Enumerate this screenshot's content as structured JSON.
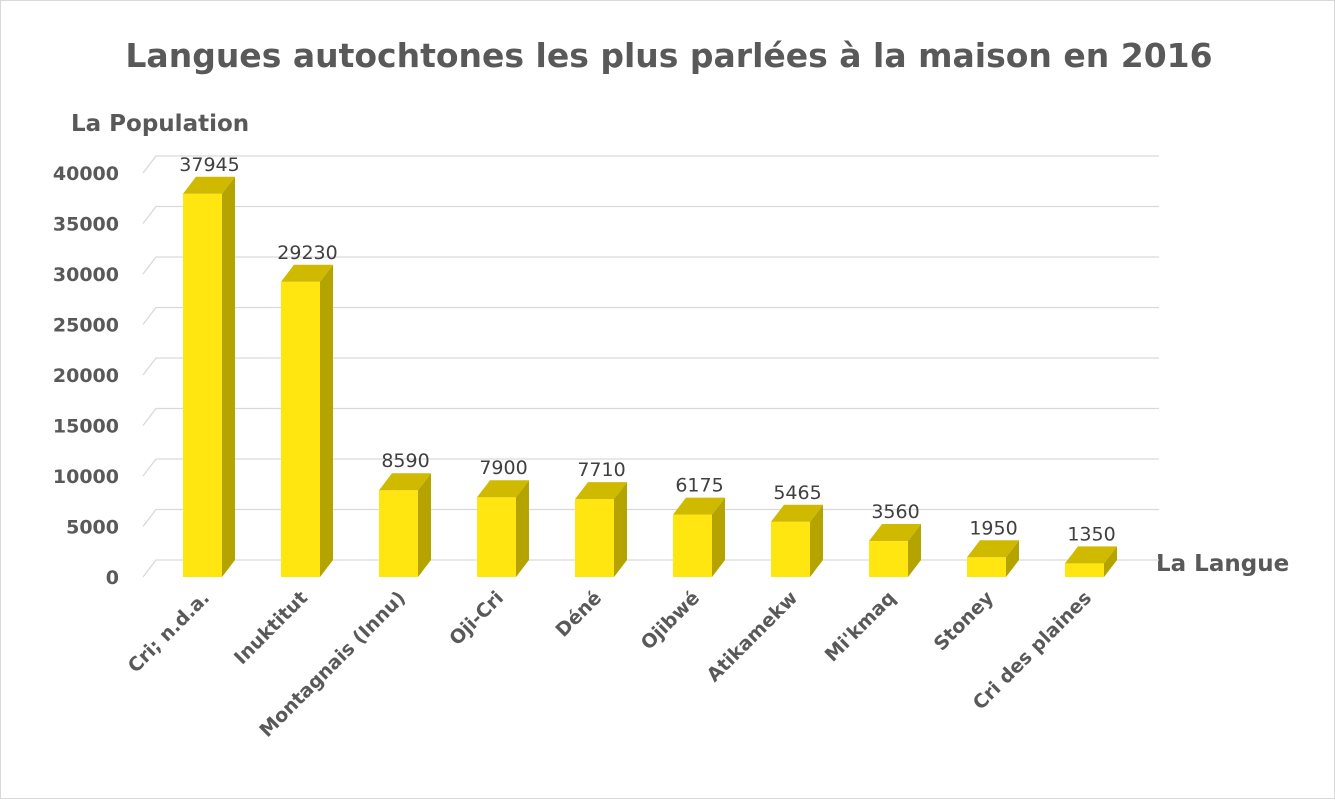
{
  "chart_data": {
    "type": "bar",
    "title": "Langues autochtones les plus parlées à la maison en 2016",
    "ylabel": "La Population",
    "xlabel": "La Langue",
    "ylim": [
      0,
      40000
    ],
    "yticks": [
      "0",
      "5000",
      "10000",
      "15000",
      "20000",
      "25000",
      "30000",
      "35000",
      "40000"
    ],
    "grid": true,
    "categories": [
      "Cri; n.d.a.",
      "Inuktitut",
      "Montagnais (Innu)",
      "Oji-Cri",
      "Déné",
      "Ojibwé",
      "Atikamekw",
      "Mi'kmaq",
      "Stoney",
      "Cri des plaines"
    ],
    "values": [
      37945,
      29230,
      8590,
      7900,
      7710,
      6175,
      5465,
      3560,
      1950,
      1350
    ],
    "data_labels": [
      "37945",
      "29230",
      "8590",
      "7900",
      "7710",
      "6175",
      "5465",
      "3560",
      "1950",
      "1350"
    ],
    "colors": {
      "front": "#ffe610",
      "side": "#b5a300",
      "top": "#cfba00",
      "grid": "#d9d9d9",
      "text": "#595959"
    }
  }
}
